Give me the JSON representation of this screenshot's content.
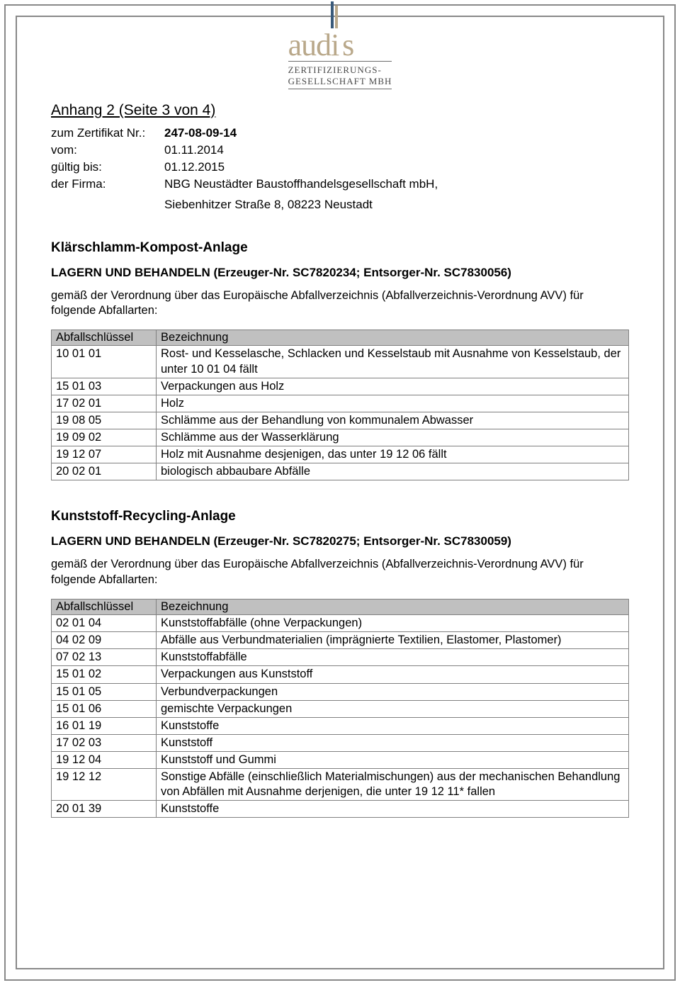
{
  "logo": {
    "main": "audis",
    "sub1": "ZERTIFIZIERUNGS-",
    "sub2": "GESELLSCHAFT MBH"
  },
  "page_title": "Anhang 2 (Seite 3 von 4)",
  "meta": {
    "cert_label": "zum Zertifikat Nr.:",
    "cert_value": "247-08-09-14",
    "from_label": "vom:",
    "from_value": "01.11.2014",
    "valid_label": "gültig bis:",
    "valid_value": "01.12.2015",
    "firma_label": "der Firma:",
    "firma_name": "NBG Neustädter Baustoffhandelsgesellschaft mbH,",
    "firma_addr": "Siebenhitzer Straße 8, 08223 Neustadt"
  },
  "section1": {
    "title": "Klärschlamm-Kompost-Anlage",
    "subtitle": "LAGERN UND BEHANDELN (Erzeuger-Nr. SC7820234; Entsorger-Nr. SC7830056)",
    "regtext": "gemäß der Verordnung über das Europäische Abfallverzeichnis (Abfallverzeichnis-Verordnung AVV) für folgende Abfallarten:",
    "col_code": "Abfallschlüssel",
    "col_desc": "Bezeichnung",
    "rows": [
      {
        "code": "10 01 01",
        "desc": "Rost- und Kesselasche, Schlacken und Kesselstaub mit Ausnahme von Kesselstaub, der unter 10 01 04 fällt"
      },
      {
        "code": "15 01 03",
        "desc": "Verpackungen aus Holz"
      },
      {
        "code": "17 02 01",
        "desc": "Holz"
      },
      {
        "code": "19 08 05",
        "desc": "Schlämme aus der Behandlung von kommunalem Abwasser"
      },
      {
        "code": "19 09 02",
        "desc": "Schlämme aus der Wasserklärung"
      },
      {
        "code": "19 12 07",
        "desc": "Holz mit Ausnahme desjenigen, das unter 19 12 06 fällt"
      },
      {
        "code": "20 02 01",
        "desc": "biologisch abbaubare Abfälle"
      }
    ]
  },
  "section2": {
    "title": "Kunststoff-Recycling-Anlage",
    "subtitle": "LAGERN UND BEHANDELN (Erzeuger-Nr. SC7820275; Entsorger-Nr. SC7830059)",
    "regtext": "gemäß der Verordnung über das Europäische Abfallverzeichnis (Abfallverzeichnis-Verordnung AVV) für folgende Abfallarten:",
    "col_code": "Abfallschlüssel",
    "col_desc": "Bezeichnung",
    "rows": [
      {
        "code": "02 01 04",
        "desc": "Kunststoffabfälle (ohne Verpackungen)"
      },
      {
        "code": "04 02 09",
        "desc": "Abfälle aus Verbundmaterialien (imprägnierte Textilien, Elastomer, Plastomer)"
      },
      {
        "code": "07 02 13",
        "desc": "Kunststoffabfälle"
      },
      {
        "code": "15 01 02",
        "desc": "Verpackungen aus Kunststoff"
      },
      {
        "code": "15 01 05",
        "desc": "Verbundverpackungen"
      },
      {
        "code": "15 01 06",
        "desc": "gemischte Verpackungen"
      },
      {
        "code": "16 01 19",
        "desc": "Kunststoffe"
      },
      {
        "code": "17 02 03",
        "desc": "Kunststoff"
      },
      {
        "code": "19 12 04",
        "desc": "Kunststoff und Gummi"
      },
      {
        "code": "19 12 12",
        "desc": "Sonstige Abfälle (einschließlich Materialmischungen) aus der mechanischen Behandlung von Abfällen mit Ausnahme derjenigen, die unter 19 12 11* fallen"
      },
      {
        "code": "20 01 39",
        "desc": "Kunststoffe"
      }
    ]
  }
}
